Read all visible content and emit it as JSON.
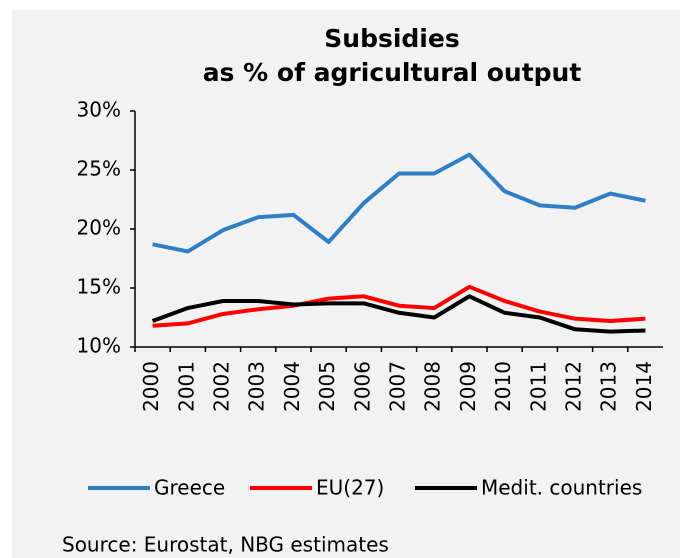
{
  "chart_data": {
    "type": "line",
    "title": "Subsidies",
    "subtitle": "as % of agricultural output",
    "categories": [
      "2000",
      "2001",
      "2002",
      "2003",
      "2004",
      "2005",
      "2006",
      "2007",
      "2008",
      "2009",
      "2010",
      "2011",
      "2012",
      "2013",
      "2014"
    ],
    "series": [
      {
        "name": "Greece",
        "color": "#2e7fc6",
        "values": [
          18.7,
          18.1,
          19.9,
          21.0,
          21.2,
          18.9,
          22.2,
          24.7,
          24.7,
          26.3,
          23.2,
          22.0,
          21.8,
          23.0,
          22.4
        ]
      },
      {
        "name": "EU(27)",
        "color": "#ff0000",
        "values": [
          11.8,
          12.0,
          12.8,
          13.2,
          13.5,
          14.1,
          14.3,
          13.5,
          13.3,
          15.1,
          13.9,
          13.0,
          12.4,
          12.2,
          12.4
        ]
      },
      {
        "name": "Medit. countries",
        "color": "#000000",
        "values": [
          12.2,
          13.3,
          13.9,
          13.9,
          13.6,
          13.7,
          13.7,
          12.9,
          12.5,
          14.3,
          12.9,
          12.5,
          11.5,
          11.3,
          11.4
        ]
      }
    ],
    "ylim": [
      10,
      30
    ],
    "yticks": [
      {
        "value": 10,
        "label": "10%"
      },
      {
        "value": 15,
        "label": "15%"
      },
      {
        "value": 20,
        "label": "20%"
      },
      {
        "value": 25,
        "label": "25%"
      },
      {
        "value": 30,
        "label": "30%"
      }
    ],
    "legend": "bottom",
    "source": "Source: Eurostat, NBG estimates"
  }
}
